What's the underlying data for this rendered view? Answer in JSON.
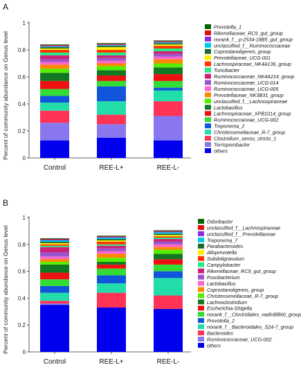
{
  "chart_data": [
    {
      "type": "bar",
      "stacked": true,
      "panel_label": "A",
      "ylabel": "Percent of community abundance on Genus level",
      "ylim": [
        0,
        1
      ],
      "yticks": [
        "0",
        "0.2",
        "0.4",
        "0.6",
        "0.8",
        "1"
      ],
      "categories": [
        "Control",
        "REE-L+",
        "REE-L-"
      ],
      "legend_position": "right",
      "series": [
        {
          "name": "Prevotella_1",
          "color": "#006400",
          "values": [
            0.005,
            0.005,
            0.005
          ]
        },
        {
          "name": "Rikenellaceae_RC9_gut_group",
          "color": "#dd1111",
          "values": [
            0.005,
            0.005,
            0.005
          ]
        },
        {
          "name": "norank_f__p-2534-18B5_gut_group",
          "color": "#8b2be2",
          "values": [
            0.005,
            0.005,
            0.005
          ]
        },
        {
          "name": "unclassified_f__Ruminococcaceae",
          "color": "#00c8e6",
          "values": [
            0.005,
            0.005,
            0.005
          ]
        },
        {
          "name": "Coprostanoligenes_group",
          "color": "#1a6b2e",
          "values": [
            0.01,
            0.01,
            0.01
          ]
        },
        {
          "name": "Prevotellaceae_UCG-001",
          "color": "#ffee00",
          "values": [
            0.01,
            0.02,
            0.01
          ]
        },
        {
          "name": "Lachnospiraceae_NK4A136_group",
          "color": "#ff3300",
          "values": [
            0.02,
            0.02,
            0.02
          ]
        },
        {
          "name": "Turicibacter",
          "color": "#22ee88",
          "values": [
            0.02,
            0.02,
            0.02
          ]
        },
        {
          "name": "Ruminococcaceae_NK4A214_group",
          "color": "#cc2277",
          "values": [
            0.03,
            0.02,
            0.02
          ]
        },
        {
          "name": "Ruminococcaceae_UCG-014",
          "color": "#9955cc",
          "values": [
            0.02,
            0.02,
            0.02
          ]
        },
        {
          "name": "Ruminococcaceae_UCG-005",
          "color": "#ff66cc",
          "values": [
            0.02,
            0.02,
            0.02
          ]
        },
        {
          "name": "Prevotellaceae_NK3B31_group",
          "color": "#ff8800",
          "values": [
            0.03,
            0.02,
            0.03
          ]
        },
        {
          "name": "unclassified_f__Lachnospiraceae",
          "color": "#55ee00",
          "values": [
            0.03,
            0.03,
            0.03
          ]
        },
        {
          "name": "Lactobacillus",
          "color": "#117722",
          "values": [
            0.06,
            0.04,
            0.05
          ]
        },
        {
          "name": "Lachnospiraceae_XPB1014_group",
          "color": "#ee1111",
          "values": [
            0.06,
            0.04,
            0.05
          ]
        },
        {
          "name": "Ruminococcaceae_UCG-002",
          "color": "#33dd33",
          "values": [
            0.05,
            0.04,
            0.05
          ]
        },
        {
          "name": "Treponema_2",
          "color": "#1155dd",
          "values": [
            0.05,
            0.11,
            0.02
          ]
        },
        {
          "name": "Christensenellaceae_R-7_group",
          "color": "#22ddaa",
          "values": [
            0.06,
            0.1,
            0.08
          ]
        },
        {
          "name": "Clostridium_sensu_stricto_1",
          "color": "#ff3355",
          "values": [
            0.09,
            0.07,
            0.11
          ]
        },
        {
          "name": "Terrisporobacter",
          "color": "#8877ee",
          "values": [
            0.13,
            0.1,
            0.18
          ]
        },
        {
          "name": "others",
          "color": "#0000ee",
          "values": [
            0.13,
            0.15,
            0.13
          ]
        }
      ]
    },
    {
      "type": "bar",
      "stacked": true,
      "panel_label": "B",
      "ylabel": "Percent of community abundance on Genus level",
      "ylim": [
        0,
        1
      ],
      "yticks": [
        "0",
        "0.2",
        "0.4",
        "0.6",
        "0.8",
        "1"
      ],
      "categories": [
        "Control",
        "REE-L+",
        "REE-L-"
      ],
      "legend_position": "right",
      "series": [
        {
          "name": "Odoribacter",
          "color": "#006400",
          "values": [
            0.005,
            0.005,
            0.005
          ]
        },
        {
          "name": "unclassified_f__Lachnospiraceae",
          "color": "#dd1111",
          "values": [
            0.005,
            0.005,
            0.005
          ]
        },
        {
          "name": "unclassified_f__Prevotellaceae",
          "color": "#8b2be2",
          "values": [
            0.005,
            0.005,
            0.005
          ]
        },
        {
          "name": "Treponema_7",
          "color": "#00c8e6",
          "values": [
            0.01,
            0.01,
            0.01
          ]
        },
        {
          "name": "Parabacteroides",
          "color": "#1a6b2e",
          "values": [
            0.01,
            0.01,
            0.01
          ]
        },
        {
          "name": "Alloprevotella",
          "color": "#ffee00",
          "values": [
            0.01,
            0.01,
            0.01
          ]
        },
        {
          "name": "Subdoligranulum",
          "color": "#ff3300",
          "values": [
            0.01,
            0.02,
            0.01
          ]
        },
        {
          "name": "Campylobacter",
          "color": "#22ee88",
          "values": [
            0.01,
            0.01,
            0.01
          ]
        },
        {
          "name": "Rikenellaceae_RC9_gut_group",
          "color": "#cc2277",
          "values": [
            0.04,
            0.02,
            0.02
          ]
        },
        {
          "name": "Fusobacterium",
          "color": "#9955cc",
          "values": [
            0.03,
            0.02,
            0.02
          ]
        },
        {
          "name": "Lactobacillus",
          "color": "#ff66cc",
          "values": [
            0.02,
            0.02,
            0.02
          ]
        },
        {
          "name": "Coprostanoligenes_group",
          "color": "#ff8800",
          "values": [
            0.02,
            0.03,
            0.02
          ]
        },
        {
          "name": "Christensenellaceae_R-7_group",
          "color": "#55ee00",
          "values": [
            0.02,
            0.03,
            0.03
          ]
        },
        {
          "name": "Lachnoclostridium",
          "color": "#117722",
          "values": [
            0.06,
            0.02,
            0.04
          ]
        },
        {
          "name": "Escherichia-Shigella",
          "color": "#ee1111",
          "values": [
            0.05,
            0.03,
            0.04
          ]
        },
        {
          "name": "norank_f__Clostridiales_vadinBB60_group",
          "color": "#33dd33",
          "values": [
            0.05,
            0.05,
            0.05
          ]
        },
        {
          "name": "Prevotella_2",
          "color": "#1155dd",
          "values": [
            0.05,
            0.06,
            0.05
          ]
        },
        {
          "name": "norank_f__Bacteroidales_S24-7_group",
          "color": "#22ddaa",
          "values": [
            0.06,
            0.07,
            0.13
          ]
        },
        {
          "name": "Bacteroides",
          "color": "#ff3355",
          "values": [
            0.02,
            0.11,
            0.1
          ]
        },
        {
          "name": "Ruminococcaceae_UCG-002",
          "color": "#8877ee",
          "values": [
            0.01,
            0.0,
            0.0
          ]
        },
        {
          "name": "others",
          "color": "#0000ee",
          "values": [
            0.35,
            0.33,
            0.32
          ]
        }
      ]
    }
  ]
}
